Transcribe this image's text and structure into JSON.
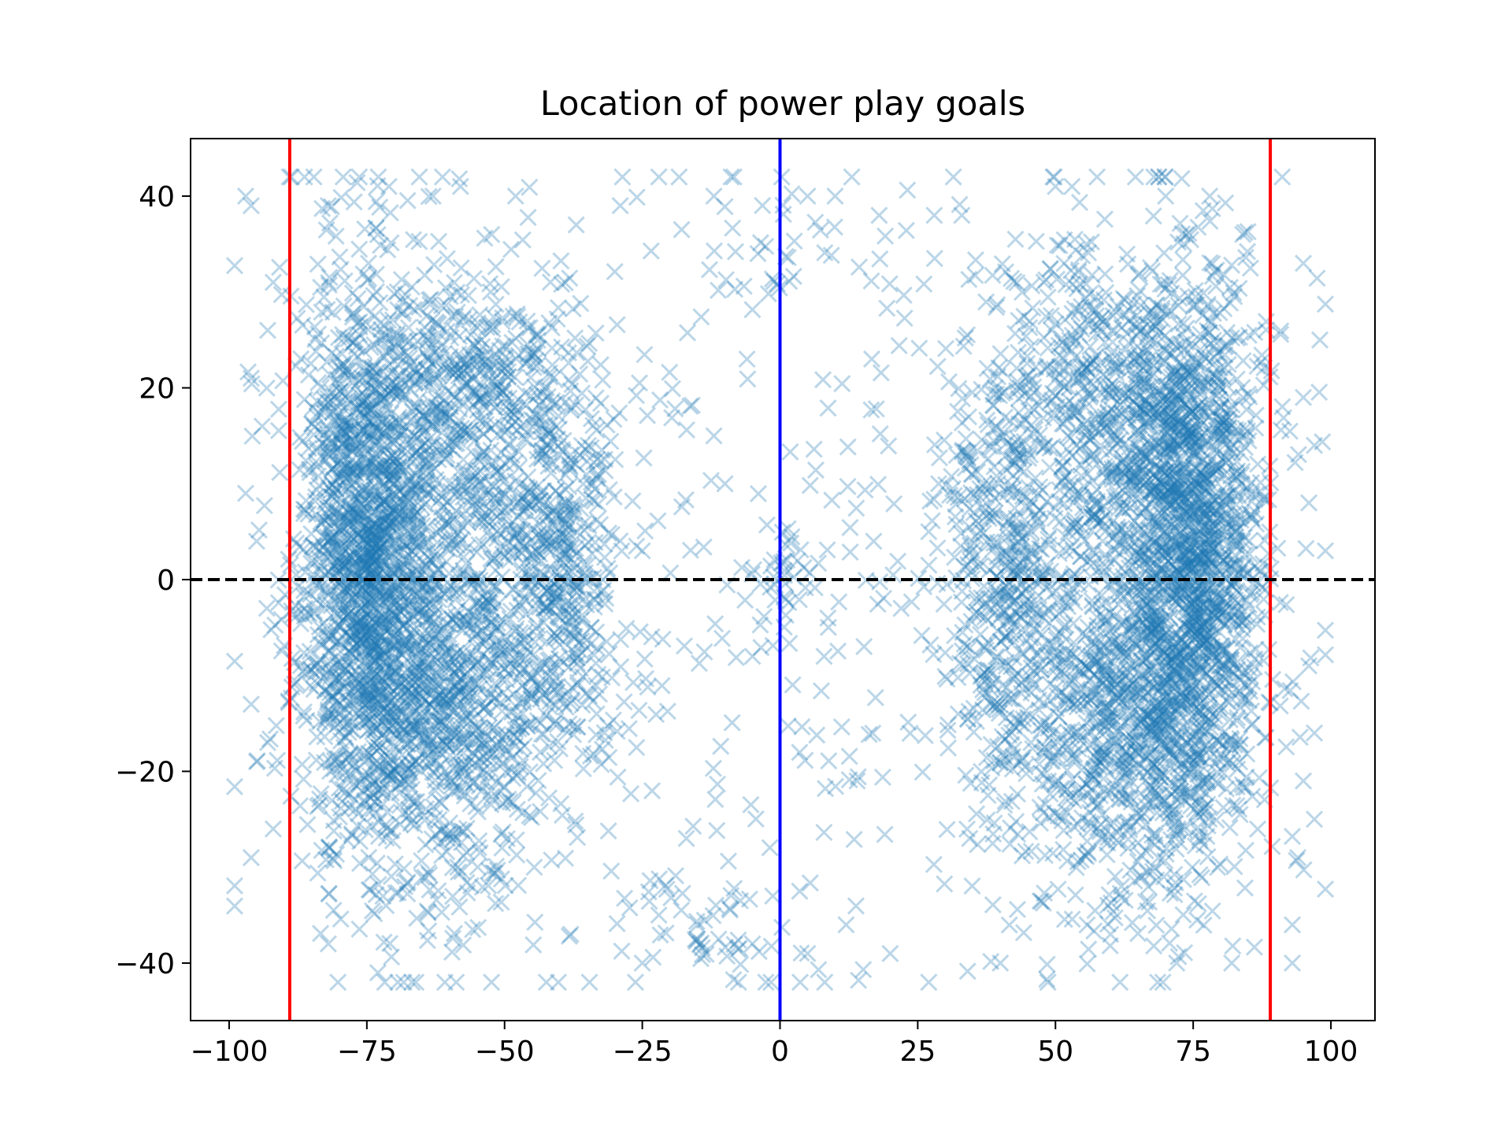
{
  "chart_data": {
    "type": "scatter",
    "title": "Location of power play goals",
    "xlabel": "",
    "ylabel": "",
    "xlim": [
      -107,
      108
    ],
    "ylim": [
      -46,
      46
    ],
    "x_ticks": [
      -100,
      -75,
      -50,
      -25,
      0,
      25,
      50,
      75,
      100
    ],
    "x_tick_labels": [
      "−100",
      "−75",
      "−50",
      "−25",
      "0",
      "25",
      "50",
      "75",
      "100"
    ],
    "y_ticks": [
      -40,
      -20,
      0,
      20,
      40
    ],
    "y_tick_labels": [
      "−40",
      "−20",
      "0",
      "20",
      "40"
    ],
    "grid": false,
    "legend": "none",
    "marker": "x",
    "marker_color": "#1f77b4",
    "marker_alpha": 0.3,
    "reference_lines": [
      {
        "orientation": "vertical",
        "value": -89,
        "color": "#ff0000",
        "style": "solid"
      },
      {
        "orientation": "vertical",
        "value": 89,
        "color": "#ff0000",
        "style": "solid"
      },
      {
        "orientation": "vertical",
        "value": 0,
        "color": "#0000ff",
        "style": "solid"
      },
      {
        "orientation": "horizontal",
        "value": 0,
        "color": "#000000",
        "style": "dashed"
      }
    ],
    "series": [
      {
        "clusters": [
          {
            "center": [
              -75,
              3
            ],
            "spread": [
              6,
              14
            ],
            "count": 1300
          },
          {
            "center": [
              -62,
              -12
            ],
            "spread": [
              10,
              10
            ],
            "count": 700
          },
          {
            "center": [
              -55,
              18
            ],
            "spread": [
              10,
              8
            ],
            "count": 450
          },
          {
            "center": [
              -40,
              0
            ],
            "spread": [
              5,
              10
            ],
            "count": 350
          },
          {
            "center": [
              -62,
              0
            ],
            "spread": [
              15,
              18
            ],
            "count": 600
          },
          {
            "center": [
              75,
              3
            ],
            "spread": [
              6,
              14
            ],
            "count": 1300
          },
          {
            "center": [
              62,
              -14
            ],
            "spread": [
              10,
              10
            ],
            "count": 700
          },
          {
            "center": [
              60,
              18
            ],
            "spread": [
              10,
              8
            ],
            "count": 450
          },
          {
            "center": [
              40,
              0
            ],
            "spread": [
              5,
              12
            ],
            "count": 350
          },
          {
            "center": [
              62,
              0
            ],
            "spread": [
              15,
              18
            ],
            "count": 600
          },
          {
            "center": [
              -20,
              0
            ],
            "spread": [
              14,
              22
            ],
            "count": 100
          },
          {
            "center": [
              15,
              0
            ],
            "spread": [
              14,
              22
            ],
            "count": 100
          },
          {
            "center": [
              0,
              0
            ],
            "spread": [
              3,
              3
            ],
            "count": 35
          },
          {
            "center": [
              -10,
              -36
            ],
            "spread": [
              12,
              3
            ],
            "count": 45
          },
          {
            "center": [
              0,
              34
            ],
            "spread": [
              10,
              4
            ],
            "count": 30
          }
        ],
        "outliers": [
          [
            -97,
            40
          ],
          [
            -96,
            39
          ],
          [
            -92,
            31
          ],
          [
            -93,
            26
          ],
          [
            -96,
            21
          ],
          [
            -94,
            16
          ],
          [
            -97,
            9
          ],
          [
            -95,
            4
          ],
          [
            -96,
            -13
          ],
          [
            -93,
            -17
          ],
          [
            -95,
            -19
          ],
          [
            -92,
            -26
          ],
          [
            -96,
            -29
          ],
          [
            -82,
            39
          ],
          [
            -71,
            41
          ],
          [
            -63,
            40
          ],
          [
            -58,
            41
          ],
          [
            -48,
            40
          ],
          [
            -37,
            37
          ],
          [
            -29,
            39
          ],
          [
            -22,
            42
          ],
          [
            -12,
            40
          ],
          [
            5,
            40
          ],
          [
            10,
            40
          ],
          [
            18,
            38
          ],
          [
            28,
            38
          ],
          [
            33,
            38
          ],
          [
            50,
            41
          ],
          [
            53,
            41
          ],
          [
            70,
            40
          ],
          [
            78,
            40
          ],
          [
            84,
            36
          ],
          [
            95,
            33
          ],
          [
            98,
            25
          ],
          [
            95,
            19
          ],
          [
            97,
            14
          ],
          [
            96,
            8
          ],
          [
            99,
            3
          ],
          [
            96,
            -9
          ],
          [
            97,
            -16
          ],
          [
            95,
            -21
          ],
          [
            97,
            -25
          ],
          [
            94,
            -29
          ],
          [
            93,
            -36
          ],
          [
            93,
            -40
          ],
          [
            82,
            -40
          ],
          [
            72,
            -40
          ],
          [
            60,
            -37
          ],
          [
            40,
            -40
          ],
          [
            27,
            -42
          ],
          [
            20,
            -39
          ],
          [
            -25,
            -40
          ],
          [
            -5,
            -38
          ],
          [
            -73,
            -41
          ],
          [
            -82,
            -38
          ],
          [
            -38,
            -37
          ],
          [
            -15,
            -36
          ],
          [
            5,
            -39
          ],
          [
            12,
            -36
          ],
          [
            -22,
            -35
          ],
          [
            -17,
            -27
          ],
          [
            14,
            -21
          ],
          [
            -6,
            23
          ],
          [
            -4,
            34
          ],
          [
            17,
            4
          ],
          [
            27,
            5
          ],
          [
            -12,
            15
          ],
          [
            -10,
            10
          ],
          [
            8,
            -8
          ],
          [
            -5,
            -8
          ],
          [
            -25,
            3
          ],
          [
            22,
            -3
          ]
        ]
      }
    ]
  }
}
